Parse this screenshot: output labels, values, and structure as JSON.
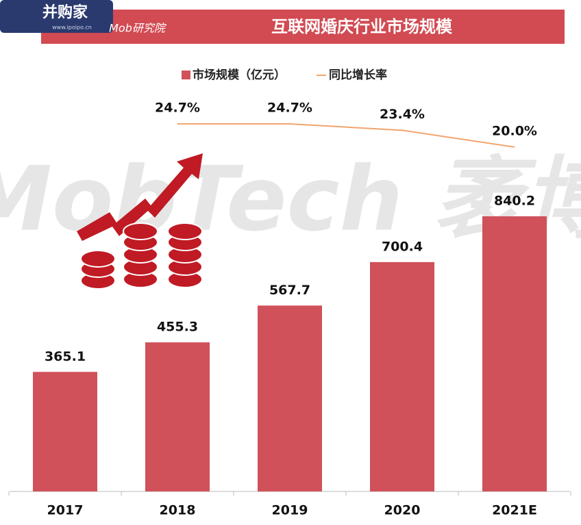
{
  "chart_data": {
    "type": "bar_line",
    "title": "互联网婚庆行业市场规模",
    "annotations": [
      "并购家",
      "www.ipoipo.cn",
      "Mob研究院",
      "MobTech 袤博"
    ],
    "categories": [
      "2017",
      "2018",
      "2019",
      "2020",
      "2021E"
    ],
    "series": [
      {
        "name": "市场规模（亿元）",
        "color": "#d0515a",
        "type": "bar",
        "values": [
          365.1,
          455.3,
          567.7,
          700.4,
          840.2
        ]
      },
      {
        "name": "同比增长率",
        "color": "#f2a46e",
        "type": "line",
        "values": [
          null,
          24.7,
          24.7,
          23.4,
          20.0
        ],
        "value_labels": [
          null,
          "24.7%",
          "24.7%",
          "23.4%",
          "20.0%"
        ]
      }
    ]
  }
}
